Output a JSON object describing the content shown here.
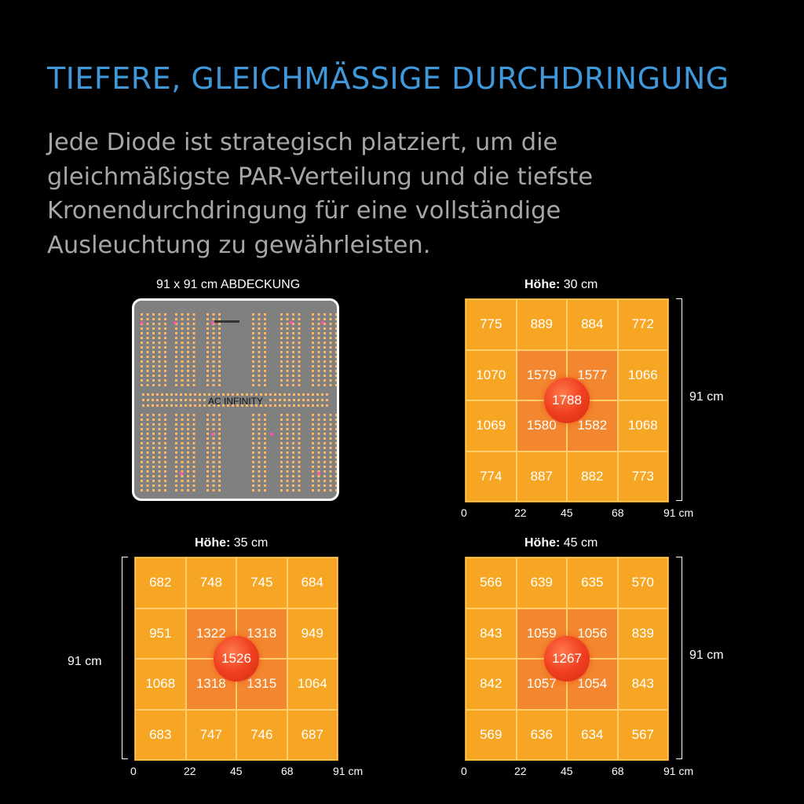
{
  "title": "TIEFERE, GLEICHMÄSSIGE DURCHDRINGUNG",
  "description_lines": [
    "Jede Diode ist strategisch platziert, um die",
    "gleichmäßigste PAR-Verteilung und die tiefste",
    "Kronendurchdringung für eine vollständige",
    "Ausleuchtung zu gewährleisten."
  ],
  "panel": {
    "caption": "91 x 91 cm ABDECKUNG",
    "logo": "AC INFINITY"
  },
  "axis_ticks": [
    "0",
    "22",
    "45",
    "68",
    "91 cm"
  ],
  "dimension_label": "91 cm",
  "colors": {
    "title": "#3e98da",
    "outer_cell": "#f6a623",
    "inner_cell": "#f3872f",
    "peak": "#f04020"
  },
  "charts": [
    {
      "caption_bold": "Höhe:",
      "caption_value": "30 cm",
      "values": [
        [
          775,
          889,
          884,
          772
        ],
        [
          1070,
          1579,
          1577,
          1066
        ],
        [
          1069,
          1580,
          1582,
          1068
        ],
        [
          774,
          887,
          882,
          773
        ]
      ],
      "peak": "1788"
    },
    {
      "caption_bold": "Höhe:",
      "caption_value": "35 cm",
      "values": [
        [
          682,
          748,
          745,
          684
        ],
        [
          951,
          1322,
          1318,
          949
        ],
        [
          1068,
          1318,
          1315,
          1064
        ],
        [
          683,
          747,
          746,
          687
        ]
      ],
      "peak": "1526"
    },
    {
      "caption_bold": "Höhe:",
      "caption_value": "45 cm",
      "values": [
        [
          566,
          639,
          635,
          570
        ],
        [
          843,
          1059,
          1056,
          839
        ],
        [
          842,
          1057,
          1054,
          843
        ],
        [
          569,
          636,
          634,
          567
        ]
      ],
      "peak": "1267"
    }
  ]
}
